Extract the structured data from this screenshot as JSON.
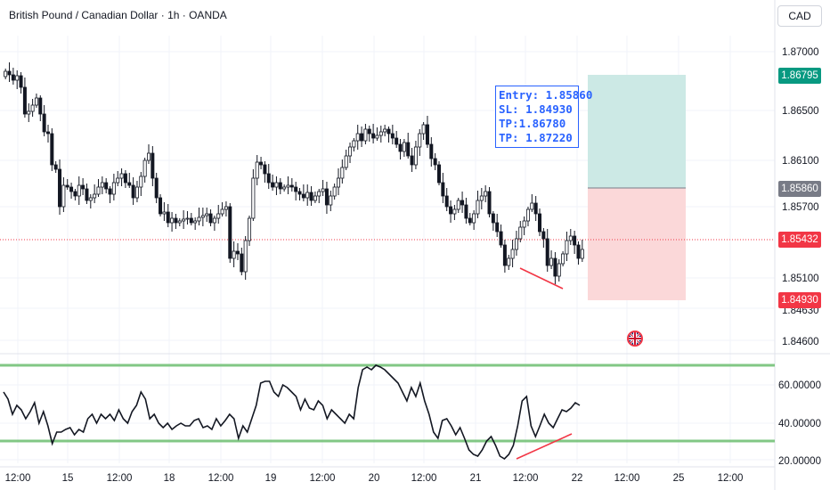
{
  "header": {
    "title": "British Pound / Canadian Dollar · 1h · OANDA",
    "currency": "CAD"
  },
  "price_axis": {
    "ticks": [
      "1.87000",
      "1.86500",
      "1.86100",
      "1.85700",
      "1.85100",
      "1.84630",
      "1.84600"
    ],
    "labels": [
      {
        "text": "1.86795",
        "color": "#089981"
      },
      {
        "text": "1.85860",
        "color": "#787b86"
      },
      {
        "text": "1.85432",
        "color": "#f23645"
      },
      {
        "text": "1.84930",
        "color": "#f23645"
      }
    ]
  },
  "rsi_axis": {
    "ticks": [
      "60.00000",
      "40.00000",
      "20.00000"
    ]
  },
  "time_axis": {
    "ticks": [
      "12:00",
      "15",
      "12:00",
      "18",
      "12:00",
      "19",
      "12:00",
      "20",
      "12:00",
      "21",
      "12:00",
      "22",
      "12:00",
      "25",
      "12:00"
    ]
  },
  "position": {
    "entry": "Entry: 1.85860",
    "sl": "SL: 1.84930",
    "tp1": "TP:1.86780",
    "tp2": "TP: 1.87220"
  },
  "colors": {
    "up": "#089981",
    "down": "#f23645",
    "target_zone": "#cce9e5",
    "stop_zone": "#fbd8d9",
    "rsi_band": "#81c784"
  },
  "icons": {
    "event": "uk-flag-icon"
  }
}
